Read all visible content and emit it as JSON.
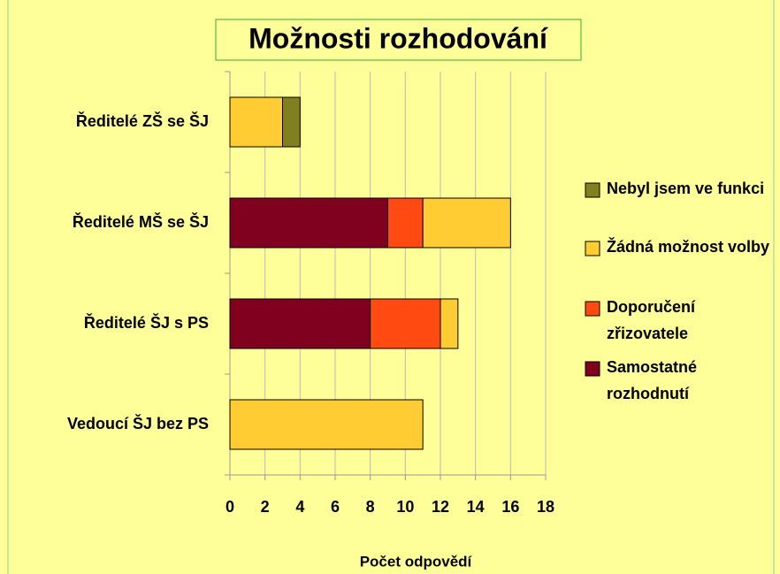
{
  "chart_data": {
    "type": "stacked_bar_horizontal",
    "title": "Možnosti rozhodování",
    "x_axis_label": "Počet odpovědí",
    "categories": [
      "Ředitelé ZŠ se ŠJ",
      "Ředitelé MŠ se ŠJ",
      "Ředitelé ŠJ s PS",
      "Vedoucí ŠJ bez PS"
    ],
    "series": [
      {
        "name": "Samostatné rozhodnutí",
        "color": "#800020",
        "values": [
          0,
          9,
          8,
          0
        ]
      },
      {
        "name": "Doporučení zřizovatele",
        "color": "#ff4a12",
        "values": [
          0,
          2,
          4,
          0
        ]
      },
      {
        "name": "Žádná možnost volby",
        "color": "#ffcc33",
        "values": [
          3,
          5,
          1,
          11
        ]
      },
      {
        "name": "Nebyl jsem ve funkci",
        "color": "#808020",
        "values": [
          1,
          0,
          0,
          0
        ]
      }
    ],
    "xlim": [
      0,
      18
    ],
    "xticks": [
      0,
      2,
      4,
      6,
      8,
      10,
      12,
      14,
      16,
      18
    ],
    "grid": true,
    "legend": "right"
  }
}
